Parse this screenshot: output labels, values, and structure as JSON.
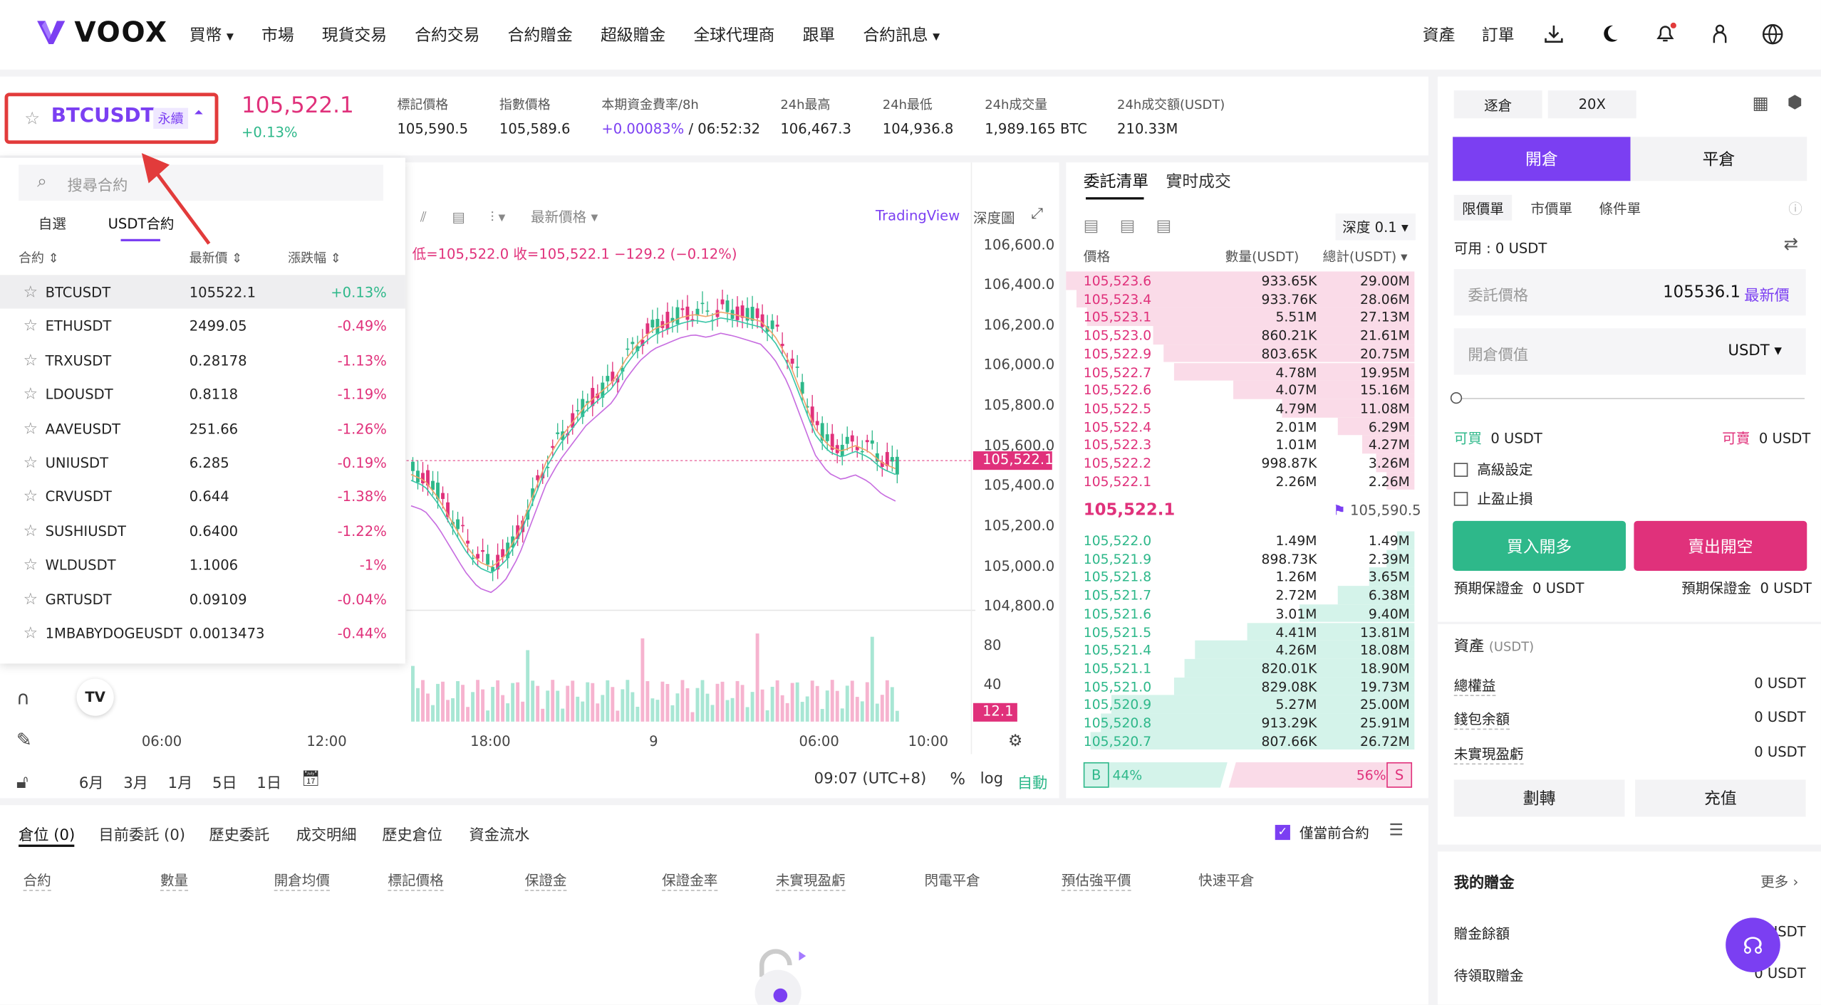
{
  "app": {
    "name": "VOOX",
    "accent": "#7b3ff2",
    "up": "#2eb88a",
    "down": "#e0317b"
  },
  "nav": {
    "items": [
      "買幣",
      "市場",
      "現貨交易",
      "合約交易",
      "合約贈金",
      "超級贈金",
      "全球代理商",
      "跟單",
      "合約訊息"
    ],
    "right": [
      "資產",
      "訂單"
    ],
    "icons": [
      "download-icon",
      "moon-icon",
      "bell-icon",
      "user-icon",
      "globe-icon"
    ]
  },
  "ticker": {
    "symbol": "BTCUSDT",
    "perp": "永續",
    "price": "105,522.1",
    "change": "+0.13%",
    "stats": [
      {
        "label": "標記價格",
        "value": "105,590.5"
      },
      {
        "label": "指數價格",
        "value": "105,589.6"
      },
      {
        "label": "本期資金費率/8h",
        "value": "+0.00083%",
        "value2": " / 06:52:32"
      },
      {
        "label": "24h最高",
        "value": "106,467.3"
      },
      {
        "label": "24h最低",
        "value": "104,936.8"
      },
      {
        "label": "24h成交量",
        "value": "1,989.165 BTC"
      },
      {
        "label": "24h成交額(USDT)",
        "value": "210.33M"
      }
    ]
  },
  "dropdown": {
    "search_placeholder": "搜尋合約",
    "tabs": [
      "自選",
      "USDT合約"
    ],
    "headers": [
      "合約",
      "最新價",
      "漲跌幅"
    ],
    "rows": [
      {
        "name": "BTCUSDT",
        "price": "105522.1",
        "change": "+0.13%",
        "up": true
      },
      {
        "name": "ETHUSDT",
        "price": "2499.05",
        "change": "-0.49%"
      },
      {
        "name": "TRXUSDT",
        "price": "0.28178",
        "change": "-1.13%"
      },
      {
        "name": "LDOUSDT",
        "price": "0.8118",
        "change": "-1.19%"
      },
      {
        "name": "AAVEUSDT",
        "price": "251.66",
        "change": "-1.26%"
      },
      {
        "name": "UNIUSDT",
        "price": "6.285",
        "change": "-0.19%"
      },
      {
        "name": "CRVUSDT",
        "price": "0.644",
        "change": "-1.38%"
      },
      {
        "name": "SUSHIUSDT",
        "price": "0.6400",
        "change": "-1.22%"
      },
      {
        "name": "WLDUSDT",
        "price": "1.1006",
        "change": "-1%"
      },
      {
        "name": "GRTUSDT",
        "price": "0.09109",
        "change": "-0.04%"
      },
      {
        "name": "1MBABYDOGEUSDT",
        "price": "0.0013473",
        "change": "-0.44%"
      }
    ]
  },
  "chart": {
    "toolbar": {
      "latest": "最新價格",
      "tradingview": "TradingView",
      "depth": "深度圖"
    },
    "ohlc": "低=105,522.0  收=105,522.1  −129.2 (−0.12%)",
    "yticks": [
      "106,600.0",
      "106,400.0",
      "106,200.0",
      "106,000.0",
      "105,800.0",
      "105,600.0",
      "105,400.0",
      "105,200.0",
      "105,000.0",
      "104,800.0"
    ],
    "price_tag": "105,522.1",
    "vol_ticks": [
      "80",
      "40"
    ],
    "vol_tag": "12.1",
    "xticks": [
      "06:00",
      "12:00",
      "18:00",
      "9",
      "06:00",
      "10:00"
    ],
    "ranges": [
      "6月",
      "3月",
      "1月",
      "5日",
      "1日"
    ],
    "time": "09:07 (UTC+8)",
    "pct": "%",
    "log": "log",
    "auto": "自動"
  },
  "orderbook": {
    "tabs": [
      "委託清單",
      "實时成交"
    ],
    "depth": "深度 0.1",
    "headers": [
      "價格",
      "數量(USDT)",
      "總計(USDT)"
    ],
    "asks": [
      [
        "105,523.6",
        "933.65K",
        "29.00M",
        1.0
      ],
      [
        "105,523.4",
        "933.76K",
        "28.06M",
        0.97
      ],
      [
        "105,523.1",
        "5.51M",
        "27.13M",
        0.94
      ],
      [
        "105,523.0",
        "860.21K",
        "21.61M",
        0.75
      ],
      [
        "105,522.9",
        "803.65K",
        "20.75M",
        0.72
      ],
      [
        "105,522.7",
        "4.78M",
        "19.95M",
        0.69
      ],
      [
        "105,522.6",
        "4.07M",
        "15.16M",
        0.52
      ],
      [
        "105,522.5",
        "4.79M",
        "11.08M",
        0.38
      ],
      [
        "105,522.4",
        "2.01M",
        "6.29M",
        0.22
      ],
      [
        "105,522.3",
        "1.01M",
        "4.27M",
        0.15
      ],
      [
        "105,522.2",
        "998.87K",
        "3.26M",
        0.11
      ],
      [
        "105,522.1",
        "2.26M",
        "2.26M",
        0.08
      ]
    ],
    "mid": "105,522.1",
    "mark": "105,590.5",
    "bids": [
      [
        "105,522.0",
        "1.49M",
        "1.49M",
        0.05
      ],
      [
        "105,521.9",
        "898.73K",
        "2.39M",
        0.08
      ],
      [
        "105,521.8",
        "1.26M",
        "3.65M",
        0.13
      ],
      [
        "105,521.7",
        "2.72M",
        "6.38M",
        0.22
      ],
      [
        "105,521.6",
        "3.01M",
        "9.40M",
        0.33
      ],
      [
        "105,521.5",
        "4.41M",
        "13.81M",
        0.48
      ],
      [
        "105,521.4",
        "4.26M",
        "18.08M",
        0.63
      ],
      [
        "105,521.1",
        "820.01K",
        "18.90M",
        0.66
      ],
      [
        "105,521.0",
        "829.08K",
        "19.73M",
        0.69
      ],
      [
        "105,520.9",
        "5.27M",
        "25.00M",
        0.87
      ],
      [
        "105,520.8",
        "913.29K",
        "25.91M",
        0.9
      ],
      [
        "105,520.7",
        "807.66K",
        "26.72M",
        0.93
      ]
    ],
    "buy_label": "B",
    "buy_pct": "44%",
    "sell_pct": "56%",
    "sell_label": "S"
  },
  "trade": {
    "margin_mode": "逐倉",
    "leverage": "20X",
    "open": "開倉",
    "close": "平倉",
    "types": [
      "限價單",
      "市價單",
      "條件單"
    ],
    "available": "可用 : 0 USDT",
    "price_label": "委託價格",
    "price_value": "105536.1",
    "latest": "最新價",
    "amount_label": "開倉價值",
    "unit": "USDT",
    "can_buy": "可買",
    "can_buy_v": "0 USDT",
    "can_sell": "可賣",
    "can_sell_v": "0 USDT",
    "advanced": "高級設定",
    "tpsl": "止盈止損",
    "buy_btn": "買入開多",
    "sell_btn": "賣出開空",
    "est_margin": "預期保證金",
    "est_v": "0 USDT"
  },
  "assets": {
    "title": "資產",
    "unit": "(USDT)",
    "rows": [
      [
        "總權益",
        "0 USDT"
      ],
      [
        "錢包余額",
        "0 USDT"
      ],
      [
        "未實現盈虧",
        "0 USDT"
      ]
    ],
    "transfer": "劃轉",
    "deposit": "充值"
  },
  "bonus": {
    "title": "我的贈金",
    "more": "更多",
    "rows": [
      [
        "贈金餘額",
        "USDT"
      ],
      [
        "待領取贈金",
        "0 USDT"
      ]
    ]
  },
  "bottom": {
    "tabs": [
      "倉位 (0)",
      "目前委託 (0)",
      "歷史委託",
      "成交明細",
      "歷史倉位",
      "資金流水"
    ],
    "only_current": "僅當前合約",
    "headers": [
      "合約",
      "數量",
      "開倉均價",
      "標記價格",
      "保證金",
      "保證金率",
      "未實現盈虧",
      "閃電平倉",
      "預估強平價",
      "快速平倉"
    ]
  }
}
